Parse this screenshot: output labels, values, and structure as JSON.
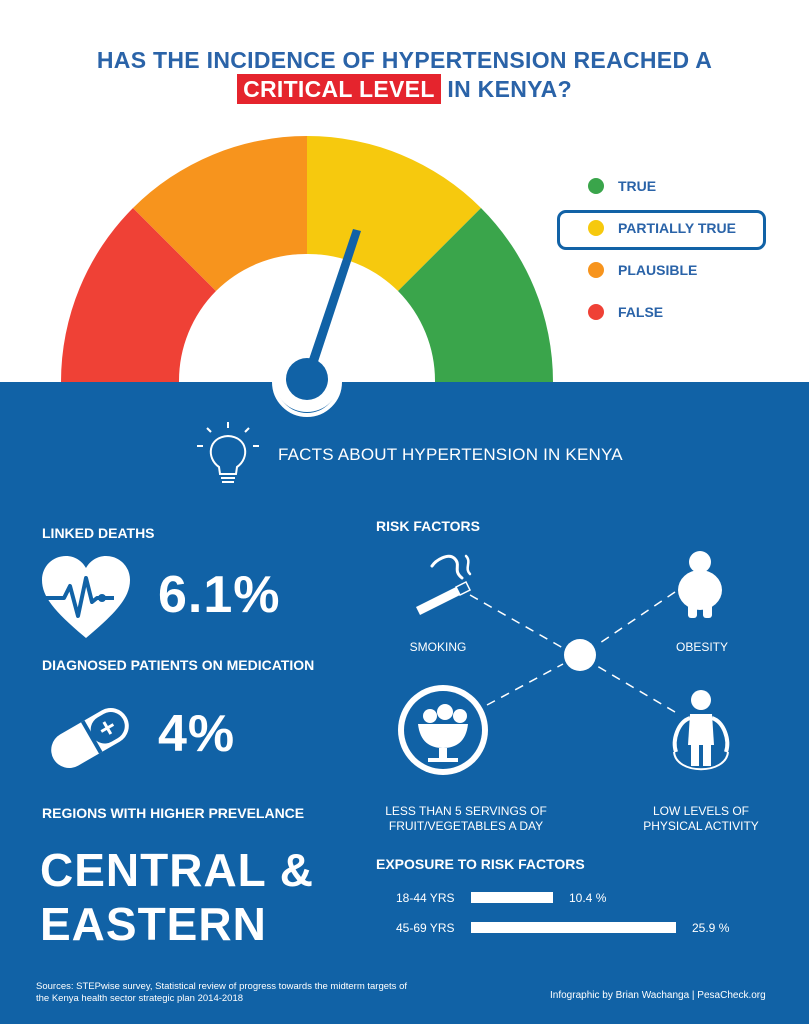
{
  "title": {
    "line1": "HAS THE INCIDENCE OF HYPERTENSION REACHED A",
    "highlight": "CRITICAL LEVEL",
    "line2_rest": "IN KENYA?"
  },
  "rating": {
    "selected": "PARTIALLY TRUE",
    "options": [
      {
        "label": "TRUE",
        "color": "#3aa54b"
      },
      {
        "label": "PARTIALLY TRUE",
        "color": "#f6c90e"
      },
      {
        "label": "PLAUSIBLE",
        "color": "#f7941d"
      },
      {
        "label": "FALSE",
        "color": "#ef4136"
      }
    ]
  },
  "facts": {
    "heading": "FACTS ABOUT HYPERTENSION IN KENYA",
    "linked_deaths": {
      "label": "LINKED DEATHS",
      "value": "6.1%"
    },
    "medication": {
      "label": "DIAGNOSED PATIENTS ON MEDICATION",
      "value": "4%"
    },
    "regions": {
      "label": "REGIONS WITH HIGHER PREVELANCE",
      "line1": "CENTRAL &",
      "line2": "EASTERN"
    }
  },
  "risk_factors": {
    "heading": "RISK FACTORS",
    "items": [
      "SMOKING",
      "OBESITY",
      "LESS THAN 5 SERVINGS OF",
      "FRUIT/VEGETABLES A DAY",
      "LOW LEVELS OF",
      "PHYSICAL ACTIVITY"
    ]
  },
  "exposure": {
    "heading": "EXPOSURE TO RISK FACTORS",
    "rows": [
      {
        "age": "18-44 YRS",
        "value": 10.4,
        "value_label": "10.4 %"
      },
      {
        "age": "45-69 YRS",
        "value": 25.9,
        "value_label": "25.9 %"
      }
    ]
  },
  "footer": {
    "sources_line1": "Sources: STEPwise survey, Statistical review of progress towards the midterm targets of",
    "sources_line2": "the Kenya health sector strategic plan 2014-2018",
    "credit": "Infographic by Brian Wachanga | PesaCheck.org"
  }
}
